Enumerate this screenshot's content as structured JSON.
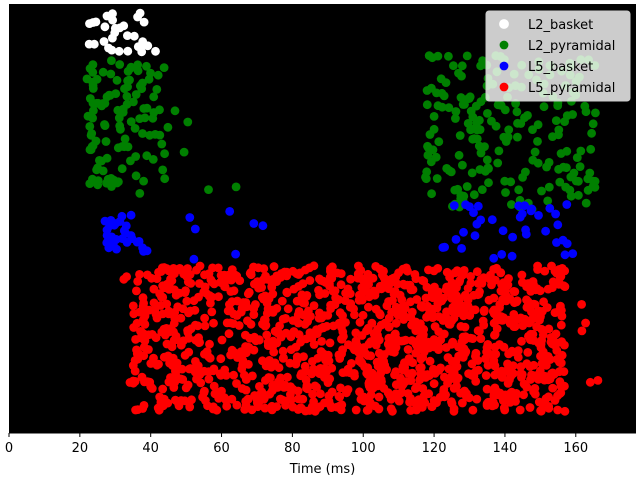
{
  "chart_data": {
    "type": "scatter",
    "title": "",
    "xlabel": "Time (ms)",
    "ylabel": "",
    "xlim": [
      0,
      177
    ],
    "ylim": [
      0,
      1
    ],
    "xticks": [
      0,
      20,
      40,
      60,
      80,
      100,
      120,
      140,
      160
    ],
    "grid": false,
    "background": "#000000",
    "legend_position": "top-right",
    "series": [
      {
        "name": "L2_basket",
        "color": "#ffffff",
        "clusters": [
          {
            "x_range": [
              22,
              42
            ],
            "y_range": [
              0.885,
              0.985
            ],
            "count": 30,
            "seed": 11
          }
        ]
      },
      {
        "name": "L2_pyramidal",
        "color": "#008000",
        "clusters": [
          {
            "x_range": [
              22,
              44
            ],
            "y_range": [
              0.57,
              0.87
            ],
            "count": 110,
            "seed": 23
          },
          {
            "x_range": [
              30,
              75
            ],
            "y_range": [
              0.55,
              0.78
            ],
            "count": 12,
            "seed": 37
          },
          {
            "x_range": [
              117,
              166
            ],
            "y_range": [
              0.52,
              0.88
            ],
            "count": 210,
            "seed": 41
          }
        ]
      },
      {
        "name": "L5_basket",
        "color": "#0000ff",
        "clusters": [
          {
            "x_range": [
              27,
              40
            ],
            "y_range": [
              0.42,
              0.52
            ],
            "count": 32,
            "seed": 53
          },
          {
            "x_range": [
              43,
              80
            ],
            "y_range": [
              0.4,
              0.52
            ],
            "count": 7,
            "seed": 59
          },
          {
            "x_range": [
              121,
              160
            ],
            "y_range": [
              0.4,
              0.54
            ],
            "count": 38,
            "seed": 61
          }
        ]
      },
      {
        "name": "L5_pyramidal",
        "color": "#ff0000",
        "clusters": [
          {
            "x_range": [
              35,
              157
            ],
            "y_range": [
              0.05,
              0.39
            ],
            "count": 1250,
            "seed": 71
          },
          {
            "x_range": [
              30,
              170
            ],
            "y_range": [
              0.05,
              0.39
            ],
            "count": 70,
            "seed": 83
          }
        ]
      }
    ]
  }
}
